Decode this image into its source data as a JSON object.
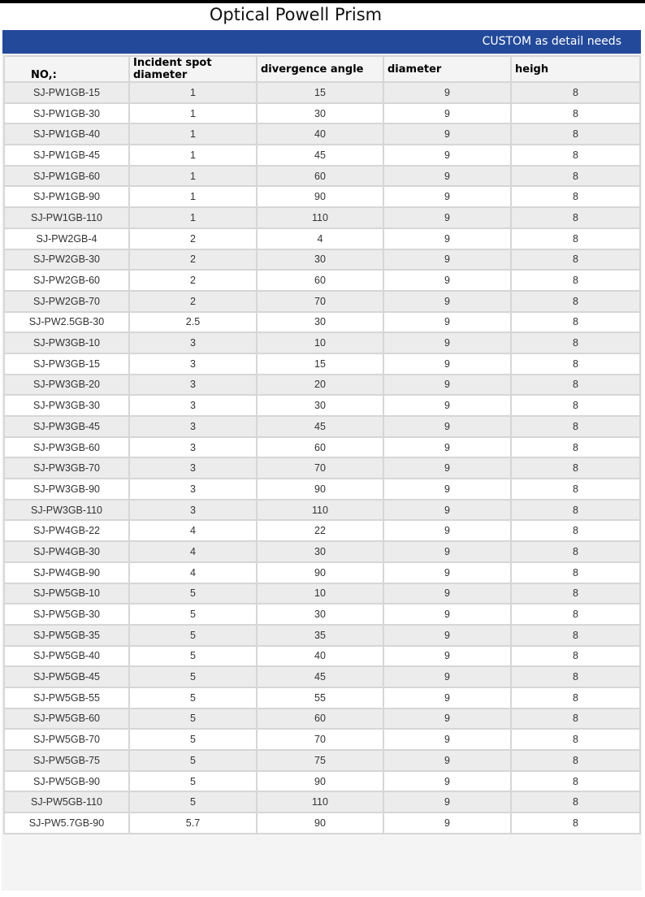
{
  "title": "Optical Powell Prism",
  "banner": "CUSTOM as detail needs",
  "colors": {
    "banner": "#234a9a",
    "row_alt": "#ececec"
  },
  "table": {
    "headers": [
      "NO,:",
      "Incident spot diameter",
      "divergence angle",
      "diameter",
      "heigh"
    ],
    "rows": [
      [
        "SJ-PW1GB-15",
        "1",
        "15",
        "9",
        "8"
      ],
      [
        "SJ-PW1GB-30",
        "1",
        "30",
        "9",
        "8"
      ],
      [
        "SJ-PW1GB-40",
        "1",
        "40",
        "9",
        "8"
      ],
      [
        "SJ-PW1GB-45",
        "1",
        "45",
        "9",
        "8"
      ],
      [
        "SJ-PW1GB-60",
        "1",
        "60",
        "9",
        "8"
      ],
      [
        "SJ-PW1GB-90",
        "1",
        "90",
        "9",
        "8"
      ],
      [
        "SJ-PW1GB-110",
        "1",
        "110",
        "9",
        "8"
      ],
      [
        "SJ-PW2GB-4",
        "2",
        "4",
        "9",
        "8"
      ],
      [
        "SJ-PW2GB-30",
        "2",
        "30",
        "9",
        "8"
      ],
      [
        "SJ-PW2GB-60",
        "2",
        "60",
        "9",
        "8"
      ],
      [
        "SJ-PW2GB-70",
        "2",
        "70",
        "9",
        "8"
      ],
      [
        "SJ-PW2.5GB-30",
        "2.5",
        "30",
        "9",
        "8"
      ],
      [
        "SJ-PW3GB-10",
        "3",
        "10",
        "9",
        "8"
      ],
      [
        "SJ-PW3GB-15",
        "3",
        "15",
        "9",
        "8"
      ],
      [
        "SJ-PW3GB-20",
        "3",
        "20",
        "9",
        "8"
      ],
      [
        "SJ-PW3GB-30",
        "3",
        "30",
        "9",
        "8"
      ],
      [
        "SJ-PW3GB-45",
        "3",
        "45",
        "9",
        "8"
      ],
      [
        "SJ-PW3GB-60",
        "3",
        "60",
        "9",
        "8"
      ],
      [
        "SJ-PW3GB-70",
        "3",
        "70",
        "9",
        "8"
      ],
      [
        "SJ-PW3GB-90",
        "3",
        "90",
        "9",
        "8"
      ],
      [
        "SJ-PW3GB-110",
        "3",
        "110",
        "9",
        "8"
      ],
      [
        "SJ-PW4GB-22",
        "4",
        "22",
        "9",
        "8"
      ],
      [
        "SJ-PW4GB-30",
        "4",
        "30",
        "9",
        "8"
      ],
      [
        "SJ-PW4GB-90",
        "4",
        "90",
        "9",
        "8"
      ],
      [
        "SJ-PW5GB-10",
        "5",
        "10",
        "9",
        "8"
      ],
      [
        "SJ-PW5GB-30",
        "5",
        "30",
        "9",
        "8"
      ],
      [
        "SJ-PW5GB-35",
        "5",
        "35",
        "9",
        "8"
      ],
      [
        "SJ-PW5GB-40",
        "5",
        "40",
        "9",
        "8"
      ],
      [
        "SJ-PW5GB-45",
        "5",
        "45",
        "9",
        "8"
      ],
      [
        "SJ-PW5GB-55",
        "5",
        "55",
        "9",
        "8"
      ],
      [
        "SJ-PW5GB-60",
        "5",
        "60",
        "9",
        "8"
      ],
      [
        "SJ-PW5GB-70",
        "5",
        "70",
        "9",
        "8"
      ],
      [
        "SJ-PW5GB-75",
        "5",
        "75",
        "9",
        "8"
      ],
      [
        "SJ-PW5GB-90",
        "5",
        "90",
        "9",
        "8"
      ],
      [
        "SJ-PW5GB-110",
        "5",
        "110",
        "9",
        "8"
      ],
      [
        "SJ-PW5.7GB-90",
        "5.7",
        "90",
        "9",
        "8"
      ]
    ]
  }
}
